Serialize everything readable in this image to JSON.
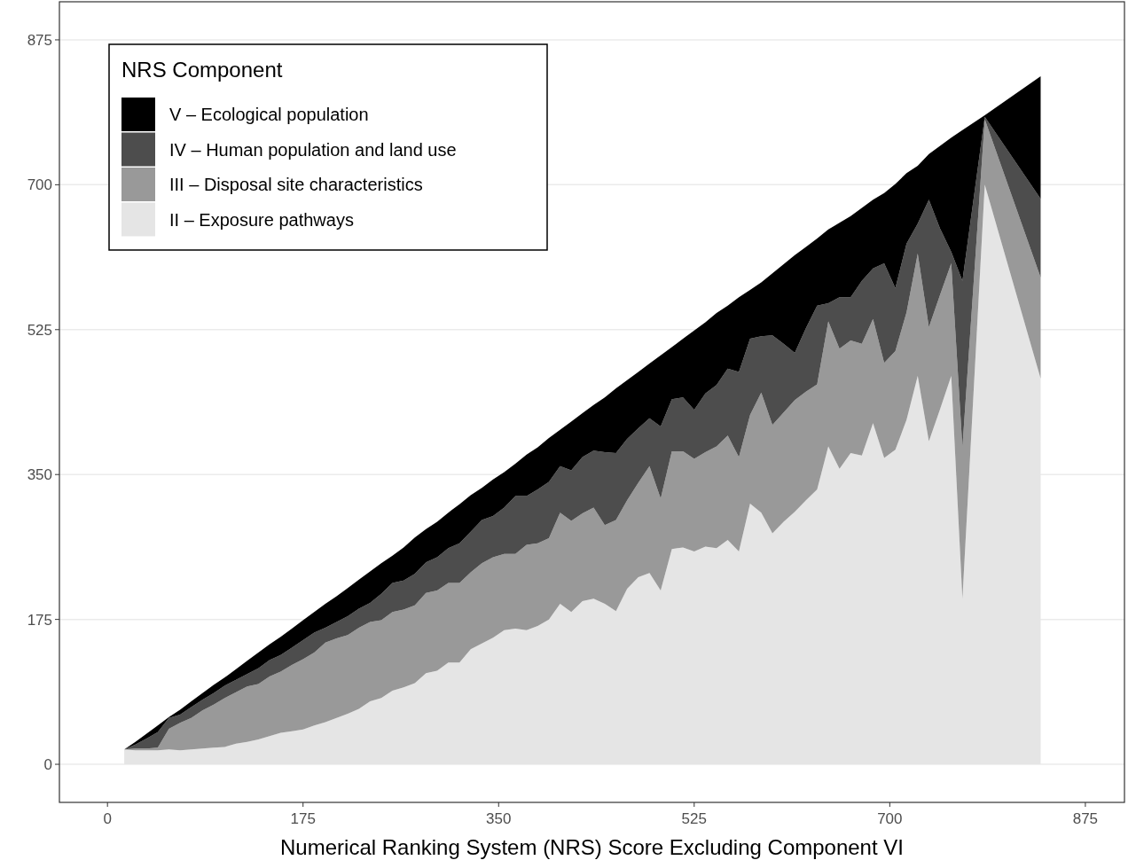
{
  "chart_data": {
    "type": "area",
    "stacked": true,
    "xlabel": "Numerical Ranking System (NRS) Score Excluding Component VI",
    "legend_title": "NRS Component",
    "legend": "top left",
    "grid": "y",
    "xlim": [
      -43,
      910
    ],
    "ylim": [
      -46,
      921
    ],
    "xticks": [
      0,
      175,
      350,
      525,
      700,
      875
    ],
    "yticks": [
      0,
      175,
      350,
      525,
      700,
      875
    ],
    "x": [
      15,
      25,
      35,
      45,
      55,
      65,
      75,
      85,
      95,
      105,
      115,
      125,
      135,
      145,
      155,
      165,
      175,
      185,
      195,
      205,
      215,
      225,
      235,
      245,
      255,
      265,
      275,
      285,
      295,
      305,
      315,
      325,
      335,
      345,
      355,
      365,
      375,
      385,
      395,
      405,
      415,
      425,
      435,
      445,
      455,
      465,
      475,
      485,
      495,
      505,
      515,
      525,
      535,
      545,
      555,
      565,
      575,
      585,
      595,
      605,
      615,
      625,
      635,
      645,
      655,
      665,
      675,
      685,
      695,
      705,
      715,
      725,
      735,
      745,
      755,
      765,
      785,
      835
    ],
    "series": [
      {
        "name": "II – Exposure pathways",
        "color": "#e5e5e5",
        "values": [
          18,
          17,
          17,
          17,
          18,
          17,
          18,
          19,
          20,
          21,
          25,
          27,
          30,
          34,
          38,
          40,
          42,
          47,
          51,
          56,
          61,
          67,
          76,
          80,
          89,
          93,
          98,
          110,
          113,
          123,
          123,
          139,
          146,
          153,
          162,
          164,
          162,
          167,
          175,
          194,
          184,
          197,
          200,
          194,
          185,
          212,
          226,
          231,
          210,
          260,
          262,
          257,
          263,
          261,
          271,
          257,
          315,
          304,
          279,
          293,
          305,
          319,
          332,
          384,
          357,
          376,
          373,
          412,
          370,
          380,
          416,
          469,
          390,
          429,
          469,
          200,
          700,
          466
        ]
      },
      {
        "name": "III – Disposal site characteristics",
        "color": "#999999",
        "values": [
          0,
          2,
          2,
          3,
          25,
          33,
          38,
          46,
          52,
          59,
          62,
          67,
          67,
          72,
          74,
          80,
          85,
          88,
          96,
          96,
          95,
          98,
          96,
          94,
          95,
          94,
          94,
          97,
          97,
          96,
          96,
          93,
          97,
          97,
          92,
          90,
          103,
          100,
          98,
          110,
          110,
          106,
          110,
          95,
          110,
          107,
          114,
          129,
          111,
          118,
          116,
          112,
          114,
          123,
          126,
          114,
          107,
          145,
          131,
          132,
          135,
          131,
          127,
          151,
          145,
          136,
          135,
          126,
          115,
          119,
          130,
          148,
          138,
          138,
          136,
          183,
          79,
          122
        ]
      },
      {
        "name": "IV – Human population and land use",
        "color": "#4d4d4d",
        "values": [
          0,
          5,
          12,
          19,
          13,
          10,
          13,
          13,
          14,
          15,
          15,
          15,
          19,
          20,
          20,
          21,
          23,
          24,
          18,
          20,
          23,
          23,
          23,
          32,
          35,
          35,
          38,
          37,
          40,
          42,
          48,
          49,
          52,
          50,
          56,
          70,
          59,
          65,
          68,
          56,
          61,
          68,
          69,
          88,
          81,
          74,
          66,
          58,
          87,
          63,
          65,
          59,
          71,
          74,
          81,
          103,
          92,
          68,
          108,
          83,
          57,
          77,
          95,
          22,
          62,
          52,
          76,
          61,
          120,
          76,
          83,
          36,
          154,
          80,
          14,
          201,
          3,
          95
        ]
      },
      {
        "name": "V – Ecological population",
        "color": "#000000",
        "values": [
          0,
          3,
          6,
          8,
          1,
          6,
          7,
          8,
          10,
          10,
          13,
          16,
          19,
          19,
          22,
          23,
          24,
          25,
          29,
          31,
          34,
          35,
          38,
          37,
          33,
          40,
          44,
          40,
          43,
          43,
          47,
          44,
          39,
          44,
          43,
          39,
          50,
          51,
          53,
          44,
          59,
          53,
          55,
          66,
          78,
          71,
          68,
          66,
          86,
          63,
          71,
          96,
          86,
          87,
          76,
          90,
          59,
          65,
          75,
          96,
          118,
          98,
          81,
          89,
          90,
          98,
          88,
          83,
          85,
          126,
          85,
          70,
          55,
          100,
          138,
          182,
          2,
          148
        ]
      }
    ]
  }
}
